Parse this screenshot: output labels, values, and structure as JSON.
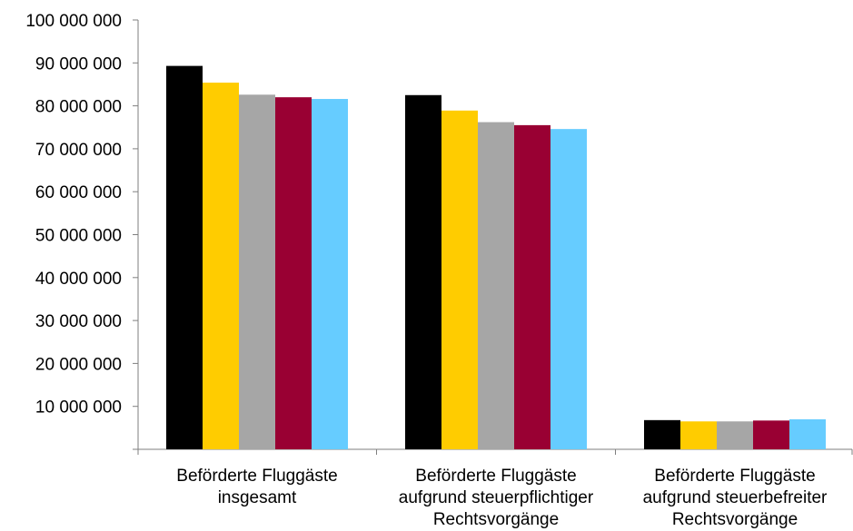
{
  "chart_data": {
    "type": "bar",
    "categories": [
      [
        "Beförderte Fluggäste",
        "insgesamt"
      ],
      [
        "Beförderte Fluggäste",
        "aufgrund steuerpflichtiger",
        "Rechtsvorgänge"
      ],
      [
        "Beförderte Fluggäste",
        "aufgrund steuerbefreiter",
        "Rechtsvorgänge"
      ]
    ],
    "series": [
      {
        "color": "#000000",
        "values": [
          89300000,
          82500000,
          6800000
        ]
      },
      {
        "color": "#FFCC00",
        "values": [
          85400000,
          78900000,
          6500000
        ]
      },
      {
        "color": "#A6A6A6",
        "values": [
          82600000,
          76200000,
          6500000
        ]
      },
      {
        "color": "#990033",
        "values": [
          82000000,
          75500000,
          6700000
        ]
      },
      {
        "color": "#66CCFF",
        "values": [
          81600000,
          74600000,
          7000000
        ]
      }
    ],
    "ylim": [
      0,
      100000000
    ],
    "y_ticks": [
      "100 000 000",
      "90 000 000",
      "80 000 000",
      "70 000 000",
      "60 000 000",
      "50 000 000",
      "40 000 000",
      "30 000 000",
      "20 000 000",
      "10 000 000"
    ],
    "y_tick_values": [
      100000000,
      90000000,
      80000000,
      70000000,
      60000000,
      50000000,
      40000000,
      30000000,
      20000000,
      10000000
    ],
    "grid": false,
    "legend": "none"
  }
}
